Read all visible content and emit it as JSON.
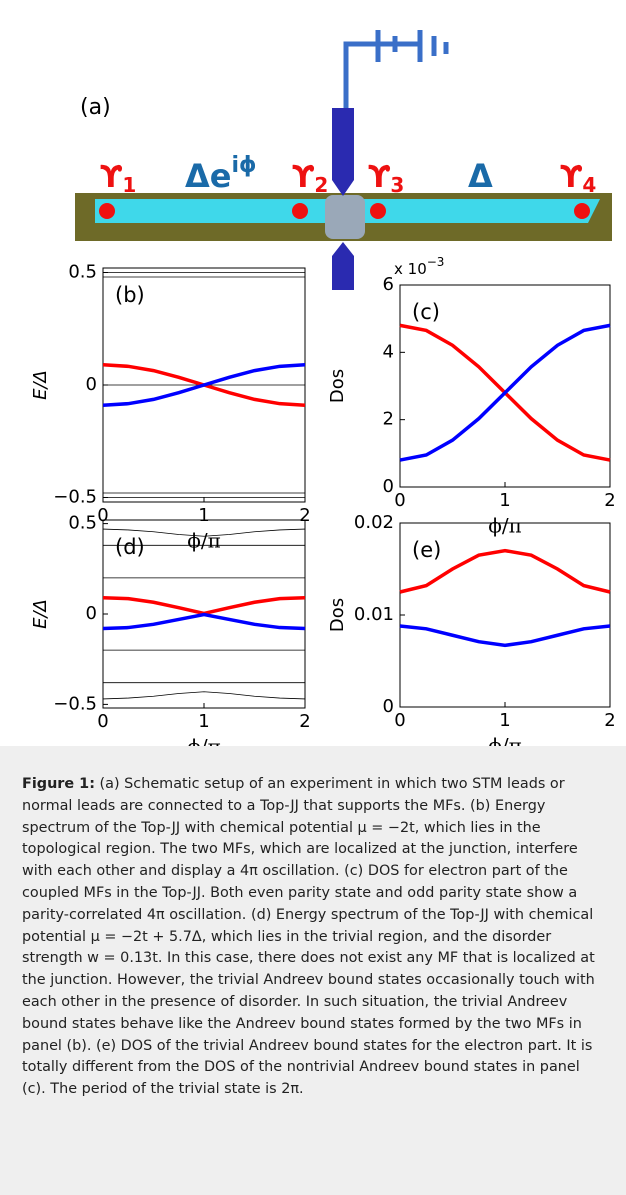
{
  "figure": {
    "panel_a": {
      "label": "(a)",
      "markers": [
        {
          "symbol": "ϒ",
          "sub": "1"
        },
        {
          "symbol": "ϒ",
          "sub": "2"
        },
        {
          "symbol": "ϒ",
          "sub": "3"
        },
        {
          "symbol": "ϒ",
          "sub": "4"
        }
      ],
      "left_gap": {
        "base": "Δe",
        "sup": "iϕ"
      },
      "right_gap": "Δ"
    }
  },
  "chart_data": [
    {
      "type": "line",
      "panel_label": "(b)",
      "xlabel": "ϕ/π",
      "ylabel": "E/Δ",
      "x": [
        0,
        0.25,
        0.5,
        0.75,
        1,
        1.25,
        1.5,
        1.75,
        2
      ],
      "xlim": [
        0,
        2
      ],
      "xticks": [
        0,
        1,
        2
      ],
      "ylim": [
        -0.52,
        0.52
      ],
      "yticks": [
        {
          "value": -0.5,
          "label": "−0.5"
        },
        0,
        0.5
      ],
      "series": [
        {
          "color": "#000000",
          "values": [
            0.5,
            0.5,
            0.5,
            0.5,
            0.5,
            0.5,
            0.5,
            0.5,
            0.5
          ]
        },
        {
          "color": "#000000",
          "values": [
            0.48,
            0.48,
            0.48,
            0.48,
            0.48,
            0.48,
            0.48,
            0.48,
            0.48
          ]
        },
        {
          "color": "#000000",
          "values": [
            0,
            0,
            0,
            0,
            0,
            0,
            0,
            0,
            0
          ]
        },
        {
          "color": "#000000",
          "values": [
            -0.48,
            -0.48,
            -0.48,
            -0.48,
            -0.48,
            -0.48,
            -0.48,
            -0.48,
            -0.48
          ]
        },
        {
          "color": "#000000",
          "values": [
            -0.5,
            -0.5,
            -0.5,
            -0.5,
            -0.5,
            -0.5,
            -0.5,
            -0.5,
            -0.5
          ]
        },
        {
          "color": "#ff0000",
          "values": [
            0.09,
            0.083,
            0.064,
            0.034,
            0,
            -0.034,
            -0.064,
            -0.083,
            -0.09
          ]
        },
        {
          "color": "#0000ff",
          "values": [
            -0.09,
            -0.083,
            -0.064,
            -0.034,
            0,
            0.034,
            0.064,
            0.083,
            0.09
          ]
        }
      ]
    },
    {
      "type": "line",
      "panel_label": "(c)",
      "xlabel": "ϕ/π",
      "ylabel": "Dos",
      "y_scale_label": "x 10",
      "y_scale_exp": "−3",
      "x": [
        0,
        0.25,
        0.5,
        0.75,
        1,
        1.25,
        1.5,
        1.75,
        2
      ],
      "xlim": [
        0,
        2
      ],
      "xticks": [
        0,
        1,
        2
      ],
      "ylim": [
        0,
        6
      ],
      "yticks": [
        0,
        2,
        4,
        6
      ],
      "series": [
        {
          "color": "#ff0000",
          "values": [
            4.8,
            4.65,
            4.21,
            3.57,
            2.8,
            2.03,
            1.39,
            0.95,
            0.8
          ]
        },
        {
          "color": "#0000ff",
          "values": [
            0.8,
            0.95,
            1.39,
            2.03,
            2.8,
            3.57,
            4.21,
            4.65,
            4.8
          ]
        }
      ]
    },
    {
      "type": "line",
      "panel_label": "(d)",
      "xlabel": "ϕ/π",
      "ylabel": "E/Δ",
      "x": [
        0,
        0.25,
        0.5,
        0.75,
        1,
        1.25,
        1.5,
        1.75,
        2
      ],
      "xlim": [
        0,
        2
      ],
      "xticks": [
        0,
        1,
        2
      ],
      "ylim": [
        -0.52,
        0.52
      ],
      "yticks": [
        {
          "value": -0.5,
          "label": "−0.5"
        },
        0,
        0.5
      ],
      "series": [
        {
          "color": "#000000",
          "values": [
            0.47,
            0.465,
            0.455,
            0.44,
            0.43,
            0.44,
            0.455,
            0.465,
            0.47
          ]
        },
        {
          "color": "#000000",
          "values": [
            0.38,
            0.38,
            0.38,
            0.38,
            0.38,
            0.38,
            0.38,
            0.38,
            0.38
          ]
        },
        {
          "color": "#000000",
          "values": [
            0.2,
            0.2,
            0.2,
            0.2,
            0.2,
            0.2,
            0.2,
            0.2,
            0.2
          ]
        },
        {
          "color": "#000000",
          "values": [
            -0.2,
            -0.2,
            -0.2,
            -0.2,
            -0.2,
            -0.2,
            -0.2,
            -0.2,
            -0.2
          ]
        },
        {
          "color": "#000000",
          "values": [
            -0.38,
            -0.38,
            -0.38,
            -0.38,
            -0.38,
            -0.38,
            -0.38,
            -0.38,
            -0.38
          ]
        },
        {
          "color": "#000000",
          "values": [
            -0.47,
            -0.465,
            -0.455,
            -0.44,
            -0.43,
            -0.44,
            -0.455,
            -0.465,
            -0.47
          ]
        },
        {
          "color": "#ff0000",
          "values": [
            0.09,
            0.085,
            0.065,
            0.035,
            0.003,
            0.035,
            0.065,
            0.085,
            0.09
          ]
        },
        {
          "color": "#0000ff",
          "values": [
            -0.08,
            -0.075,
            -0.057,
            -0.03,
            -0.003,
            -0.03,
            -0.057,
            -0.075,
            -0.08
          ]
        }
      ]
    },
    {
      "type": "line",
      "panel_label": "(e)",
      "xlabel": "ϕ/π",
      "ylabel": "Dos",
      "x": [
        0,
        0.25,
        0.5,
        0.75,
        1,
        1.25,
        1.5,
        1.75,
        2
      ],
      "xlim": [
        0,
        2
      ],
      "xticks": [
        0,
        1,
        2
      ],
      "ylim": [
        0,
        0.02
      ],
      "yticks": [
        0,
        0.01,
        0.02
      ],
      "series": [
        {
          "color": "#ff0000",
          "values": [
            0.0125,
            0.0132,
            0.015,
            0.0165,
            0.017,
            0.0165,
            0.015,
            0.0132,
            0.0125
          ]
        },
        {
          "color": "#0000ff",
          "values": [
            0.0088,
            0.0085,
            0.0078,
            0.0071,
            0.0067,
            0.0071,
            0.0078,
            0.0085,
            0.0088
          ]
        }
      ]
    }
  ],
  "caption": {
    "label": "Figure 1:",
    "text": "(a) Schematic setup of an experiment in which two STM leads or normal leads are connected to a Top-JJ that supports the MFs. (b) Energy spectrum of the Top-JJ with chemical potential μ = −2t, which lies in the topological region. The two MFs, which are localized at the junction, interfere with each other and display a 4π oscillation. (c) DOS for electron part of the coupled MFs in the Top-JJ. Both even parity state and odd parity state show a parity-correlated 4π oscillation. (d) Energy spectrum of the Top-JJ with chemical potential μ = −2t + 5.7Δ, which lies in the trivial region, and the disorder strength w = 0.13t. In this case, there does not exist any MF that is localized at the junction. However, the trivial Andreev bound states occasionally touch with each other in the presence of disorder. In such situation, the trivial Andreev bound states behave like the Andreev bound states formed by the two MFs in panel (b). (e) DOS of the trivial Andreev bound states for the electron part. It is totally different from the DOS of the nontrivial Andreev bound states in panel (c). The period of the trivial state is 2π."
  }
}
